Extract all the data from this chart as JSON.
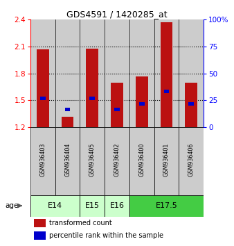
{
  "title": "GDS4591 / 1420285_at",
  "samples": [
    "GSM936403",
    "GSM936404",
    "GSM936405",
    "GSM936402",
    "GSM936400",
    "GSM936401",
    "GSM936406"
  ],
  "red_values": [
    2.07,
    1.32,
    2.08,
    1.7,
    1.77,
    2.37,
    1.7
  ],
  "blue_values": [
    1.52,
    1.4,
    1.52,
    1.4,
    1.46,
    1.6,
    1.46
  ],
  "y_min": 1.2,
  "y_max": 2.4,
  "y_ticks_red": [
    1.2,
    1.5,
    1.8,
    2.1,
    2.4
  ],
  "y_ticks_blue": [
    0,
    25,
    50,
    75,
    100
  ],
  "y_ticks_blue_labels": [
    "0",
    "25",
    "50",
    "75",
    "100%"
  ],
  "dotted_lines": [
    2.1,
    1.8,
    1.5
  ],
  "age_groups": [
    {
      "label": "E14",
      "start": 0,
      "end": 2,
      "color": "#ccffcc"
    },
    {
      "label": "E15",
      "start": 2,
      "end": 3,
      "color": "#ccffcc"
    },
    {
      "label": "E16",
      "start": 3,
      "end": 4,
      "color": "#ccffcc"
    },
    {
      "label": "E17.5",
      "start": 4,
      "end": 7,
      "color": "#44cc44"
    }
  ],
  "bar_color": "#bb1111",
  "blue_color": "#0000cc",
  "bg_color": "#cccccc",
  "bar_width": 0.5,
  "legend_red": "transformed count",
  "legend_blue": "percentile rank within the sample"
}
